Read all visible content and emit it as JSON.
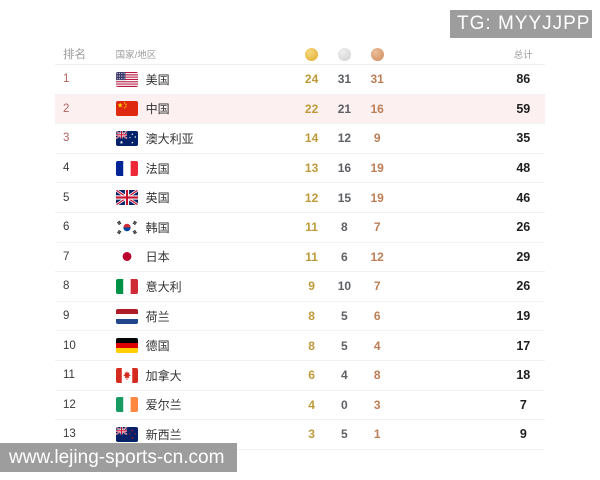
{
  "badges": {
    "tg": "TG: MYYJJPP",
    "site": "www.lejing-sports-cn.com"
  },
  "colors": {
    "badge_bg": "#9d9d9d",
    "gold_num": "#bf9a3a",
    "silver_num": "#5d6065",
    "bronze_num": "#bd7e56",
    "total_num": "#1f1f1f",
    "rank_top3": "#b3635f",
    "rank_normal": "#3a3a3a",
    "highlight_row_bg": "#fcf0f1"
  },
  "table": {
    "headers": {
      "rank": "排名",
      "country": "国家/地区",
      "total": "总计",
      "medal_icons": [
        "gold-medal-icon",
        "silver-medal-icon",
        "bronze-medal-icon"
      ]
    },
    "rows": [
      {
        "rank": 1,
        "flag": "us",
        "country": "美国",
        "gold": 24,
        "silver": 31,
        "bronze": 31,
        "total": 86,
        "highlight": false
      },
      {
        "rank": 2,
        "flag": "cn",
        "country": "中国",
        "gold": 22,
        "silver": 21,
        "bronze": 16,
        "total": 59,
        "highlight": true
      },
      {
        "rank": 3,
        "flag": "au",
        "country": "澳大利亚",
        "gold": 14,
        "silver": 12,
        "bronze": 9,
        "total": 35,
        "highlight": false
      },
      {
        "rank": 4,
        "flag": "fr",
        "country": "法国",
        "gold": 13,
        "silver": 16,
        "bronze": 19,
        "total": 48,
        "highlight": false
      },
      {
        "rank": 5,
        "flag": "gb",
        "country": "英国",
        "gold": 12,
        "silver": 15,
        "bronze": 19,
        "total": 46,
        "highlight": false
      },
      {
        "rank": 6,
        "flag": "kr",
        "country": "韩国",
        "gold": 11,
        "silver": 8,
        "bronze": 7,
        "total": 26,
        "highlight": false
      },
      {
        "rank": 7,
        "flag": "jp",
        "country": "日本",
        "gold": 11,
        "silver": 6,
        "bronze": 12,
        "total": 29,
        "highlight": false
      },
      {
        "rank": 8,
        "flag": "it",
        "country": "意大利",
        "gold": 9,
        "silver": 10,
        "bronze": 7,
        "total": 26,
        "highlight": false
      },
      {
        "rank": 9,
        "flag": "nl",
        "country": "荷兰",
        "gold": 8,
        "silver": 5,
        "bronze": 6,
        "total": 19,
        "highlight": false
      },
      {
        "rank": 10,
        "flag": "de",
        "country": "德国",
        "gold": 8,
        "silver": 5,
        "bronze": 4,
        "total": 17,
        "highlight": false
      },
      {
        "rank": 11,
        "flag": "ca",
        "country": "加拿大",
        "gold": 6,
        "silver": 4,
        "bronze": 8,
        "total": 18,
        "highlight": false
      },
      {
        "rank": 12,
        "flag": "ie",
        "country": "爱尔兰",
        "gold": 4,
        "silver": 0,
        "bronze": 3,
        "total": 7,
        "highlight": false
      },
      {
        "rank": 13,
        "flag": "nz",
        "country": "新西兰",
        "gold": 3,
        "silver": 5,
        "bronze": 1,
        "total": 9,
        "highlight": false
      }
    ]
  }
}
